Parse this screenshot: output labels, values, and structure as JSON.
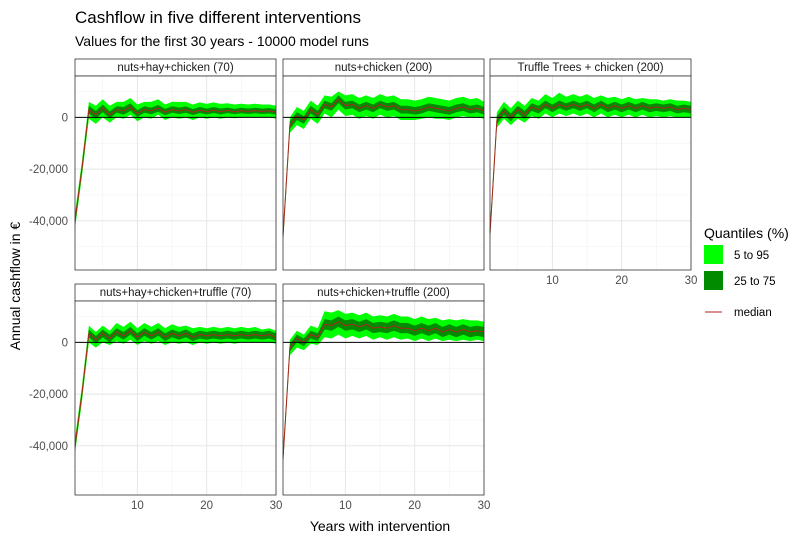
{
  "title": "Cashflow in five different interventions",
  "subtitle": "Values for the first 30 years - 10000 model runs",
  "chart_data": {
    "type": "area",
    "xlabel": "Years with intervention",
    "ylabel": "Annual cashflow in €",
    "xlim": [
      1,
      30
    ],
    "ylim": [
      -59000,
      16000
    ],
    "x_ticks": [
      10,
      20,
      30
    ],
    "x_tick_labels": [
      "10",
      "20",
      "30"
    ],
    "y_ticks": [
      0,
      -20000,
      -40000
    ],
    "y_tick_labels": [
      "0",
      "-20,000",
      "-40,000"
    ],
    "grid": true,
    "facets": [
      "nuts+hay+chicken (70)",
      "nuts+chicken (200)",
      "Truffle Trees + chicken (200)",
      "nuts+hay+chicken+truffle (70)",
      "nuts+chicken+truffle (200)"
    ],
    "legend": {
      "title": "Quantiles (%)",
      "position": "right",
      "items": [
        {
          "label": "5 to 95",
          "color": "#00ff00"
        },
        {
          "label": "25 to 75",
          "color": "#008b00"
        },
        {
          "label": "median",
          "color": "#b22222"
        }
      ]
    },
    "x": [
      1,
      2,
      3,
      4,
      5,
      6,
      7,
      8,
      9,
      10,
      11,
      12,
      13,
      14,
      15,
      16,
      17,
      18,
      19,
      20,
      21,
      22,
      23,
      24,
      25,
      26,
      27,
      28,
      29,
      30
    ],
    "panels": [
      {
        "name": "nuts+hay+chicken (70)",
        "median": [
          -40000,
          -20000,
          3000,
          1000,
          3500,
          1000,
          3000,
          2500,
          4000,
          1500,
          3000,
          2500,
          3500,
          2000,
          3000,
          2500,
          3000,
          2000,
          2800,
          2200,
          2800,
          2200,
          2700,
          2200,
          2600,
          2300,
          2600,
          2300,
          2500,
          2000
        ],
        "q25": [
          -41500,
          -21500,
          1500,
          -500,
          2000,
          -300,
          1800,
          1000,
          2500,
          200,
          1800,
          1200,
          2200,
          800,
          1800,
          1300,
          1800,
          900,
          1700,
          1100,
          1700,
          1100,
          1700,
          1200,
          1600,
          1300,
          1600,
          1300,
          1500,
          1000
        ],
        "q75": [
          -38500,
          -18500,
          4500,
          2500,
          5000,
          2300,
          4300,
          4000,
          5500,
          2800,
          4300,
          3800,
          4800,
          3300,
          4300,
          3800,
          4300,
          3200,
          4000,
          3400,
          4000,
          3400,
          3800,
          3300,
          3700,
          3400,
          3700,
          3400,
          3600,
          3100
        ],
        "q5": [
          -43000,
          -23000,
          -500,
          -2500,
          0,
          -2000,
          0,
          -500,
          1000,
          -1500,
          0,
          -500,
          1000,
          -1000,
          0,
          -500,
          0,
          -1000,
          0,
          -500,
          0,
          -500,
          0,
          -300,
          0,
          0,
          0,
          0,
          0,
          -500
        ],
        "q95": [
          -37000,
          -17000,
          6000,
          4500,
          7000,
          4500,
          6000,
          6000,
          7500,
          5000,
          6000,
          6000,
          7000,
          5000,
          6000,
          6000,
          6000,
          5000,
          5800,
          5200,
          5800,
          5200,
          5500,
          5000,
          5300,
          5000,
          5300,
          5000,
          5000,
          4500
        ]
      },
      {
        "name": "nuts+chicken (200)",
        "median": [
          -46000,
          -3000,
          500,
          -1000,
          3000,
          1000,
          5000,
          4000,
          7000,
          4500,
          5000,
          3500,
          4500,
          3500,
          5000,
          4000,
          4500,
          3000,
          3000,
          2500,
          3000,
          4000,
          3500,
          3000,
          2500,
          3500,
          4000,
          3000,
          3500,
          2500
        ],
        "q25": [
          -47500,
          -4500,
          -1000,
          -2500,
          1500,
          -500,
          3500,
          2500,
          5500,
          3000,
          3500,
          2000,
          3000,
          2000,
          3500,
          2500,
          3000,
          1500,
          1500,
          1000,
          1500,
          2500,
          2000,
          1500,
          1000,
          2000,
          2500,
          1500,
          2000,
          1000
        ],
        "q75": [
          -44500,
          -1500,
          2000,
          500,
          4500,
          2500,
          6500,
          5500,
          8500,
          6000,
          6500,
          5000,
          6000,
          5000,
          6500,
          5500,
          6000,
          4500,
          4500,
          4000,
          4500,
          5500,
          5000,
          4500,
          4000,
          5000,
          5500,
          4500,
          5000,
          4000
        ],
        "q5": [
          -49000,
          -6000,
          -3000,
          -4500,
          -500,
          -2500,
          1500,
          0,
          3000,
          500,
          1000,
          -500,
          500,
          -500,
          1000,
          0,
          500,
          -1000,
          -1000,
          -1000,
          -500,
          0,
          -500,
          -500,
          -1000,
          0,
          500,
          0,
          0,
          -500
        ],
        "q95": [
          -43000,
          0,
          4000,
          2500,
          6500,
          4500,
          8500,
          8000,
          10000,
          8500,
          9000,
          7500,
          8500,
          7500,
          9000,
          8000,
          8500,
          7000,
          7000,
          6500,
          7000,
          8000,
          7500,
          7000,
          6500,
          7500,
          8000,
          7000,
          7500,
          6000
        ]
      },
      {
        "name": "Truffle Trees + chicken (200)",
        "median": [
          -45000,
          -1000,
          2500,
          0,
          3000,
          1000,
          4000,
          3000,
          5000,
          3500,
          5000,
          4000,
          5000,
          4000,
          5000,
          3500,
          5000,
          3500,
          4500,
          3500,
          4500,
          3500,
          4500,
          3500,
          4000,
          3500,
          4000,
          3000,
          3500,
          3000
        ],
        "q25": [
          -46500,
          -2500,
          1000,
          -1500,
          1500,
          -500,
          2500,
          1500,
          3500,
          2000,
          3500,
          2500,
          3500,
          2500,
          3500,
          2000,
          3500,
          2000,
          3000,
          2000,
          3000,
          2000,
          3000,
          2000,
          2500,
          2000,
          2500,
          1500,
          2000,
          1500
        ],
        "q75": [
          -43500,
          500,
          4000,
          1500,
          4500,
          2500,
          5500,
          4500,
          6500,
          5000,
          6500,
          5500,
          6500,
          5500,
          6500,
          5000,
          6500,
          5000,
          6000,
          5000,
          6000,
          5000,
          6000,
          5000,
          5500,
          5000,
          5500,
          4500,
          5000,
          4500
        ],
        "q5": [
          -48000,
          -4000,
          -500,
          -3000,
          -500,
          -2000,
          500,
          -500,
          1500,
          0,
          1500,
          500,
          1500,
          500,
          1500,
          0,
          1500,
          0,
          1000,
          0,
          1000,
          0,
          1000,
          0,
          500,
          0,
          500,
          0,
          0,
          0
        ],
        "q95": [
          -42000,
          2000,
          6000,
          3500,
          6500,
          4500,
          7500,
          6500,
          9000,
          7500,
          9500,
          8000,
          9000,
          8000,
          9000,
          7500,
          8500,
          7500,
          8000,
          7000,
          8000,
          7000,
          7500,
          7000,
          7000,
          6500,
          7000,
          6500,
          6500,
          6000
        ]
      },
      {
        "name": "nuts+hay+chicken+truffle (70)",
        "median": [
          -40000,
          -20000,
          3500,
          1000,
          3500,
          1500,
          4000,
          2500,
          4500,
          2000,
          4000,
          2500,
          4000,
          2000,
          3500,
          2500,
          3500,
          2000,
          3000,
          2500,
          3000,
          2500,
          3000,
          2500,
          3000,
          2500,
          3000,
          2500,
          3000,
          2000
        ],
        "q25": [
          -41500,
          -21500,
          2000,
          -500,
          2000,
          0,
          2500,
          1000,
          3000,
          500,
          2500,
          1000,
          2500,
          500,
          2000,
          1000,
          2000,
          500,
          1500,
          1000,
          1500,
          1000,
          1500,
          1000,
          1500,
          1000,
          1500,
          1000,
          1500,
          500
        ],
        "q75": [
          -38500,
          -18500,
          5000,
          2500,
          5000,
          3000,
          5500,
          4000,
          6000,
          3500,
          5500,
          4000,
          5500,
          3500,
          5000,
          4000,
          5000,
          3500,
          4500,
          4000,
          4500,
          4000,
          4500,
          4000,
          4500,
          4000,
          4500,
          4000,
          4500,
          3500
        ],
        "q5": [
          -43000,
          -23000,
          0,
          -2000,
          0,
          -1000,
          500,
          -500,
          1000,
          -1000,
          500,
          -500,
          500,
          -1000,
          0,
          -500,
          0,
          -1000,
          0,
          -500,
          0,
          -500,
          0,
          -500,
          0,
          0,
          0,
          0,
          0,
          -500
        ],
        "q95": [
          -37000,
          -17000,
          6500,
          4000,
          6500,
          4500,
          7500,
          6000,
          8000,
          5500,
          7500,
          6000,
          7500,
          5500,
          7000,
          6000,
          6500,
          5500,
          6000,
          5500,
          6000,
          5500,
          6000,
          5500,
          6000,
          5500,
          6000,
          5000,
          5500,
          4500
        ]
      },
      {
        "name": "nuts+chicken+truffle (200)",
        "median": [
          -45000,
          -2000,
          1500,
          0,
          3000,
          2000,
          7000,
          6500,
          8000,
          6500,
          7000,
          6000,
          7000,
          5500,
          6000,
          5500,
          6500,
          5500,
          5500,
          4500,
          5500,
          4500,
          5500,
          4000,
          5000,
          4000,
          5000,
          4000,
          4500,
          4000
        ],
        "q25": [
          -46500,
          -3500,
          0,
          -1500,
          1500,
          500,
          5000,
          4500,
          6000,
          4500,
          5000,
          4000,
          5000,
          3500,
          4000,
          3500,
          4500,
          3500,
          3500,
          2500,
          3500,
          2500,
          3500,
          2000,
          3000,
          2000,
          3000,
          2000,
          2500,
          2000
        ],
        "q75": [
          -43500,
          -500,
          3000,
          1500,
          4500,
          3500,
          9000,
          8500,
          10000,
          8500,
          9000,
          8000,
          9000,
          7500,
          8000,
          7500,
          8500,
          7500,
          7500,
          6500,
          7500,
          6500,
          7500,
          6000,
          7000,
          6000,
          7000,
          6000,
          6500,
          6000
        ],
        "q5": [
          -48000,
          -5000,
          -2000,
          -3000,
          -500,
          -1000,
          2000,
          1500,
          3000,
          1500,
          2500,
          1500,
          2500,
          1000,
          2000,
          1000,
          2000,
          1000,
          1500,
          500,
          1500,
          500,
          1500,
          500,
          1000,
          500,
          1000,
          500,
          1000,
          500
        ],
        "q95": [
          -42000,
          1000,
          4500,
          3000,
          6500,
          5500,
          12000,
          11500,
          12500,
          11000,
          11500,
          10500,
          11500,
          10000,
          10500,
          10000,
          11000,
          10000,
          10000,
          9000,
          10000,
          9000,
          9500,
          8500,
          9000,
          8500,
          9000,
          8500,
          8500,
          8000
        ]
      }
    ]
  }
}
